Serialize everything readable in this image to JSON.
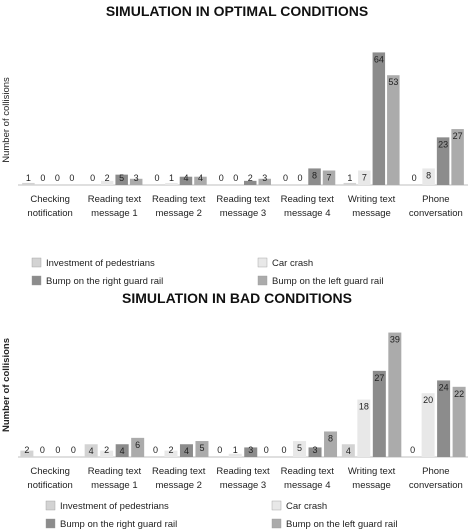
{
  "chart_data": [
    {
      "type": "bar",
      "title": "SIMULATION IN OPTIMAL CONDITIONS",
      "ylabel": "Number of collisions",
      "xlabel": "",
      "ylim": [
        0,
        70
      ],
      "grid": false,
      "legend_position": "bottom",
      "categories": [
        [
          "Checking",
          "notification"
        ],
        [
          "Reading text",
          "message 1"
        ],
        [
          "Reading text",
          "message 2"
        ],
        [
          "Reading text",
          "message 3"
        ],
        [
          "Reading text",
          "message 4"
        ],
        [
          "Writing text",
          "message"
        ],
        [
          "Phone",
          "conversation"
        ]
      ],
      "series": [
        {
          "name": "Investment of pedestrians",
          "values": [
            1,
            0,
            0,
            0,
            0,
            1,
            0
          ],
          "color": "#d3d3d3"
        },
        {
          "name": "Car crash",
          "values": [
            0,
            2,
            1,
            0,
            0,
            7,
            8
          ],
          "color": "#e8e8e8"
        },
        {
          "name": "Bump on the right guard rail",
          "values": [
            0,
            5,
            4,
            2,
            8,
            64,
            23
          ],
          "color": "#8c8c8c"
        },
        {
          "name": "Bump on the left guard rail",
          "values": [
            0,
            3,
            4,
            3,
            7,
            53,
            27
          ],
          "color": "#ababab"
        }
      ]
    },
    {
      "type": "bar",
      "title": "SIMULATION IN BAD CONDITIONS",
      "ylabel": "Number of collisions",
      "xlabel": "",
      "ylim": [
        0,
        42
      ],
      "grid": false,
      "legend_position": "bottom",
      "categories": [
        [
          "Checking",
          "notification"
        ],
        [
          "Reading text",
          "message 1"
        ],
        [
          "Reading text",
          "message 2"
        ],
        [
          "Reading text",
          "message 3"
        ],
        [
          "Reading text",
          "message 4"
        ],
        [
          "Writing text",
          "message"
        ],
        [
          "Phone",
          "conversation"
        ]
      ],
      "series": [
        {
          "name": "Investment of pedestrians",
          "values": [
            2,
            4,
            0,
            0,
            0,
            4,
            0
          ],
          "color": "#d3d3d3"
        },
        {
          "name": "Car crash",
          "values": [
            0,
            2,
            2,
            1,
            5,
            18,
            20
          ],
          "color": "#e8e8e8"
        },
        {
          "name": "Bump on the right guard rail",
          "values": [
            0,
            4,
            4,
            3,
            3,
            27,
            24
          ],
          "color": "#8c8c8c"
        },
        {
          "name": "Bump on the left guard rail",
          "values": [
            0,
            6,
            5,
            0,
            8,
            39,
            22
          ],
          "color": "#ababab"
        }
      ]
    }
  ]
}
